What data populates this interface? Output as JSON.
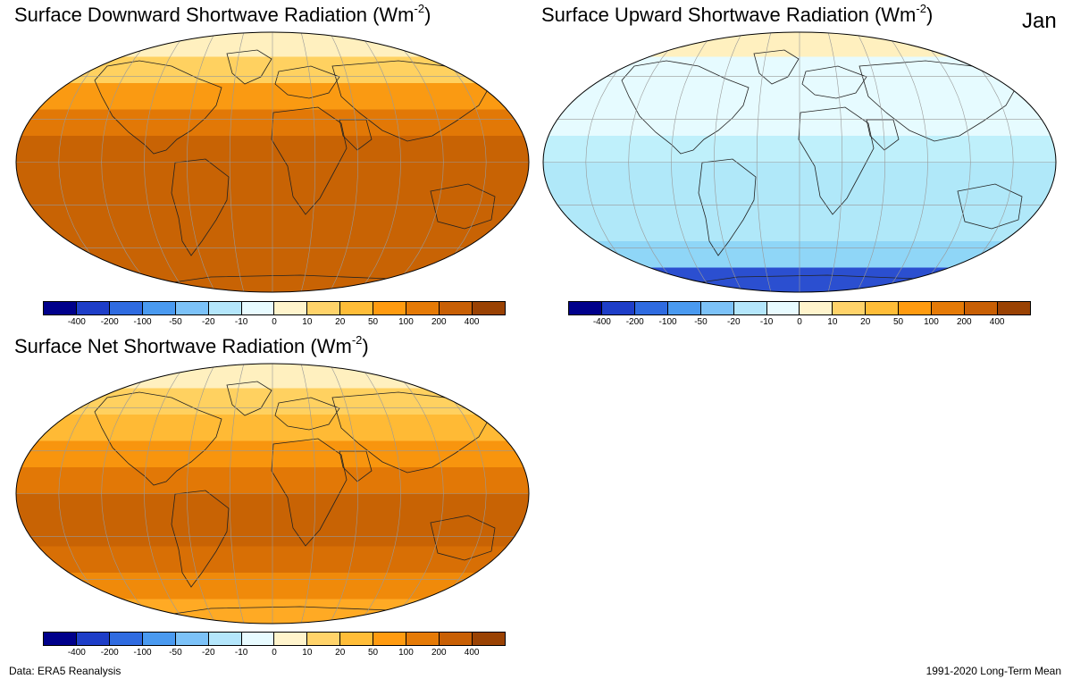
{
  "panels": [
    {
      "title": "Surface Downward Shortwave Radiation (Wm",
      "sup": "-2",
      "close": ")"
    },
    {
      "title": "Surface Upward Shortwave Radiation (Wm",
      "sup": "-2",
      "close": ")"
    },
    {
      "title": "Surface Net Shortwave Radiation (Wm",
      "sup": "-2",
      "close": ")"
    }
  ],
  "month": "Jan",
  "footer": {
    "source": "Data: ERA5 Reanalysis",
    "period": "1991-2020 Long-Term Mean"
  },
  "colorbar": {
    "ticks": [
      "-400",
      "-200",
      "-100",
      "-50",
      "-20",
      "-10",
      "0",
      "10",
      "20",
      "50",
      "100",
      "200",
      "400"
    ],
    "colors": [
      "#00008b",
      "#1e3ec8",
      "#2f6be0",
      "#4a9af0",
      "#7cc2f8",
      "#b4e6fb",
      "#e8fbff",
      "#fff4cc",
      "#ffd36a",
      "#ffbd38",
      "#ff9b10",
      "#e57a06",
      "#c85f04",
      "#9a4203"
    ]
  },
  "maps": {
    "downward": {
      "bands": [
        "#fff0bf",
        "#ffd160",
        "#fa9a12",
        "#e27806",
        "#c86304",
        "#c86304",
        "#c86304",
        "#c86304",
        "#c86304",
        "#c86304"
      ]
    },
    "upward": {
      "bands": [
        "#fff0bf",
        "#e6fbff",
        "#e6fbff",
        "#e6fbff",
        "#bff0fb",
        "#b0e8f9",
        "#b0e8f9",
        "#b0e8f9",
        "#8fd6f7",
        "#2b4fd0"
      ]
    },
    "net": {
      "bands": [
        "#fff0bf",
        "#ffd160",
        "#ffba35",
        "#f8950e",
        "#e27806",
        "#c86304",
        "#c86304",
        "#d86f05",
        "#f08a0a",
        "#ffaa24"
      ]
    }
  }
}
